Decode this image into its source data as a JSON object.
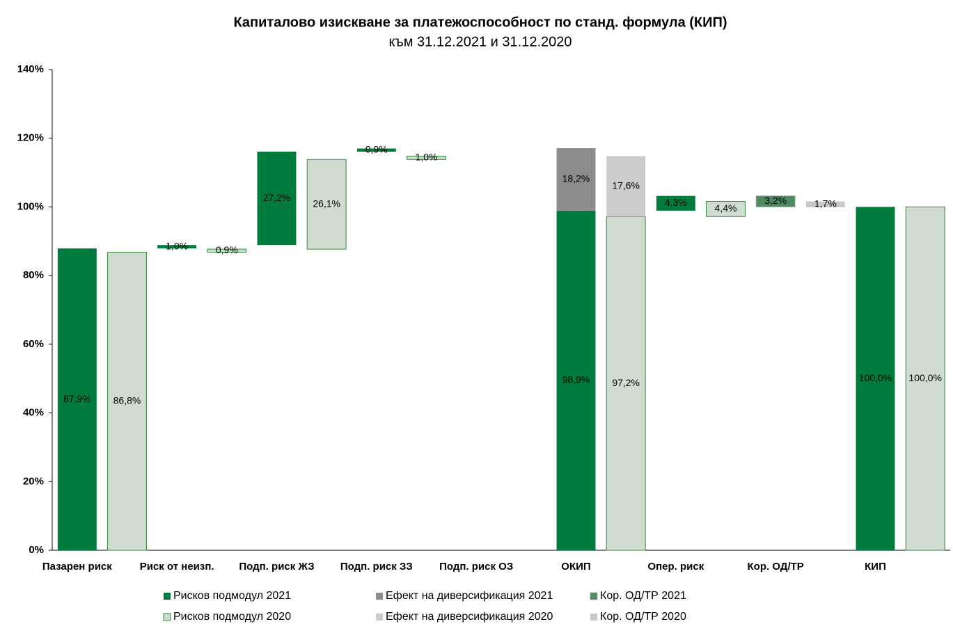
{
  "chart_data": {
    "type": "waterfall",
    "title": "Капиталово изискване за платежоспособност по станд. формула (КИП)",
    "subtitle": "към 31.12.2021 и 31.12.2020",
    "categories": [
      "Пазарен риск",
      null,
      "Риск от неизп.",
      null,
      "Подп. риск ЖЗ",
      null,
      "Подп. риск ЗЗ",
      null,
      "Подп. риск ОЗ",
      null,
      "ОКИП",
      null,
      "Опер. риск",
      null,
      "Кор. ОД/ТР",
      null,
      "КИП",
      null
    ],
    "series": [
      {
        "name": "Рисков подмодул 2021",
        "color": "#007a3d",
        "values": [
          87.9,
          null,
          1.0,
          null,
          27.2,
          null,
          0.9,
          null,
          null,
          null,
          98.9,
          null,
          4.3,
          null,
          null,
          null,
          100.0,
          null
        ],
        "value_labels": [
          "87,9%",
          null,
          "1,0%",
          null,
          "27,2%",
          null,
          "0,9%",
          null,
          null,
          null,
          "98,9%",
          null,
          "4,3%",
          null,
          null,
          null,
          "100,0%",
          null
        ]
      },
      {
        "name": "Ефект на диверсификация 2021",
        "color": "#8c8c8c",
        "values": [
          null,
          null,
          null,
          null,
          null,
          null,
          null,
          null,
          null,
          null,
          18.2,
          null,
          null,
          null,
          null,
          null,
          null,
          null
        ],
        "value_labels": [
          null,
          null,
          null,
          null,
          null,
          null,
          null,
          null,
          null,
          null,
          "18,2%",
          null,
          null,
          null,
          null,
          null,
          null,
          null
        ]
      },
      {
        "name": "Кор. ОД/ТР 2021",
        "color": "#4f8a63",
        "values": [
          null,
          null,
          null,
          null,
          null,
          null,
          null,
          null,
          null,
          null,
          null,
          null,
          null,
          null,
          -3.2,
          null,
          null,
          null
        ],
        "value_labels": [
          null,
          null,
          null,
          null,
          null,
          null,
          null,
          null,
          null,
          null,
          null,
          null,
          null,
          null,
          "3,2%",
          null,
          null,
          null
        ]
      },
      {
        "name": "Рисков подмодул 2020",
        "color": "#d0dccf",
        "values": [
          null,
          86.8,
          null,
          0.9,
          null,
          26.1,
          null,
          1.0,
          null,
          null,
          null,
          97.2,
          null,
          4.4,
          null,
          null,
          null,
          100.0
        ],
        "value_labels": [
          null,
          "86,8%",
          null,
          "0,9%",
          null,
          "26,1%",
          null,
          "1,0%",
          null,
          null,
          null,
          "97,2%",
          null,
          "4,4%",
          null,
          null,
          null,
          "100,0%"
        ]
      },
      {
        "name": "Ефект на диверсификация 2020",
        "color": "#cccccc",
        "values": [
          null,
          null,
          null,
          null,
          null,
          null,
          null,
          null,
          null,
          null,
          null,
          17.6,
          null,
          null,
          null,
          null,
          null,
          null
        ],
        "value_labels": [
          null,
          null,
          null,
          null,
          null,
          null,
          null,
          null,
          null,
          null,
          null,
          "17,6%",
          null,
          null,
          null,
          null,
          null,
          null
        ]
      },
      {
        "name": "Кор. ОД/ТР 2020",
        "color": "#c8c8c8",
        "values": [
          null,
          null,
          null,
          null,
          null,
          null,
          null,
          null,
          null,
          null,
          null,
          null,
          null,
          null,
          null,
          -1.7,
          null,
          null
        ],
        "value_labels": [
          null,
          null,
          null,
          null,
          null,
          null,
          null,
          null,
          null,
          null,
          null,
          null,
          null,
          null,
          null,
          "1,7%",
          null,
          null
        ]
      }
    ],
    "ylim": [
      0,
      140
    ],
    "yticks": [
      {
        "value": 0,
        "label": "0%"
      },
      {
        "value": 20,
        "label": "20%"
      },
      {
        "value": 40,
        "label": "40%"
      },
      {
        "value": 60,
        "label": "60%"
      },
      {
        "value": 80,
        "label": "80%"
      },
      {
        "value": 100,
        "label": "100%"
      },
      {
        "value": 120,
        "label": "120%"
      },
      {
        "value": 140,
        "label": "140%"
      }
    ],
    "grid": false
  }
}
